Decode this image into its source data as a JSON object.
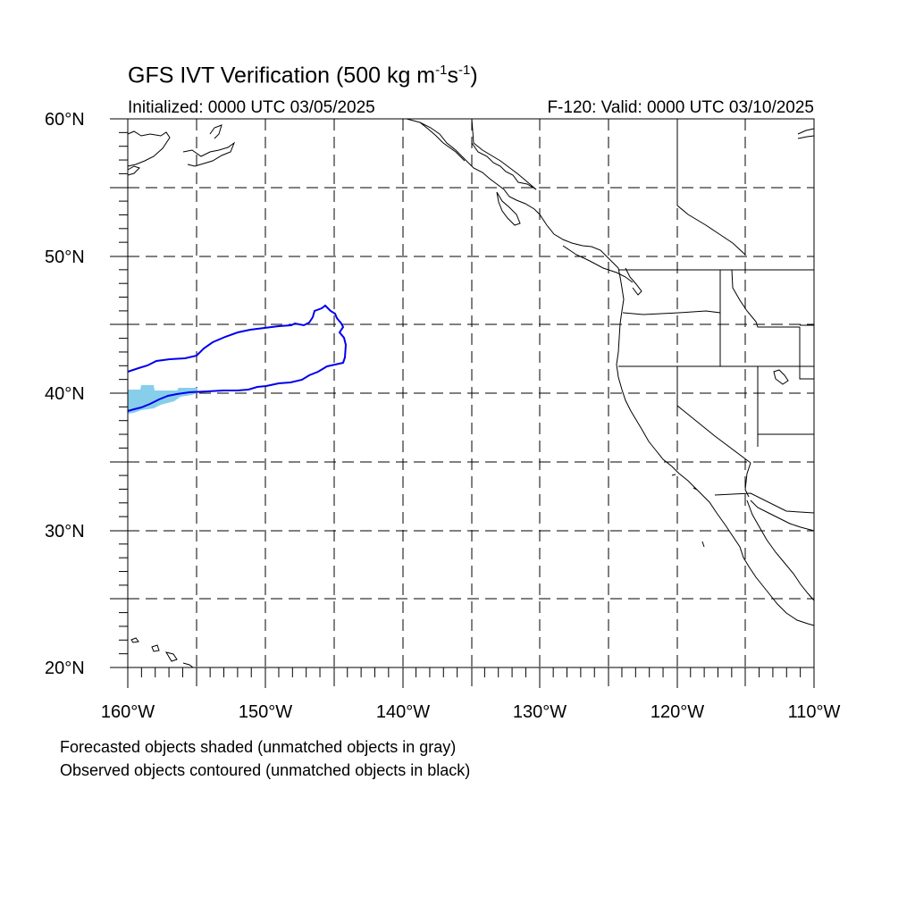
{
  "title": {
    "main": "GFS IVT Verification (500 kg m",
    "exp1": "-1",
    "mid": "s",
    "exp2": "-1",
    "end": ")"
  },
  "init_text": "Initialized: 0000 UTC 03/05/2025",
  "valid_text": "F-120: Valid: 0000 UTC 03/10/2025",
  "notes": [
    "Forecasted objects shaded (unmatched objects in gray)",
    "Observed objects contoured (unmatched objects in black)"
  ],
  "lat_ticks": [
    "20°N",
    "30°N",
    "40°N",
    "50°N",
    "60°N"
  ],
  "lon_ticks": [
    "160°W",
    "150°W",
    "140°W",
    "130°W",
    "120°W",
    "110°W"
  ],
  "map_extent": {
    "lon_min": -160,
    "lon_max": -110,
    "lat_min": 20,
    "lat_max": 60
  },
  "colors": {
    "forecast_shade": "#87ceeb",
    "observed_contour": "#0000ee",
    "coastline": "#000000",
    "grid": "#000000"
  }
}
